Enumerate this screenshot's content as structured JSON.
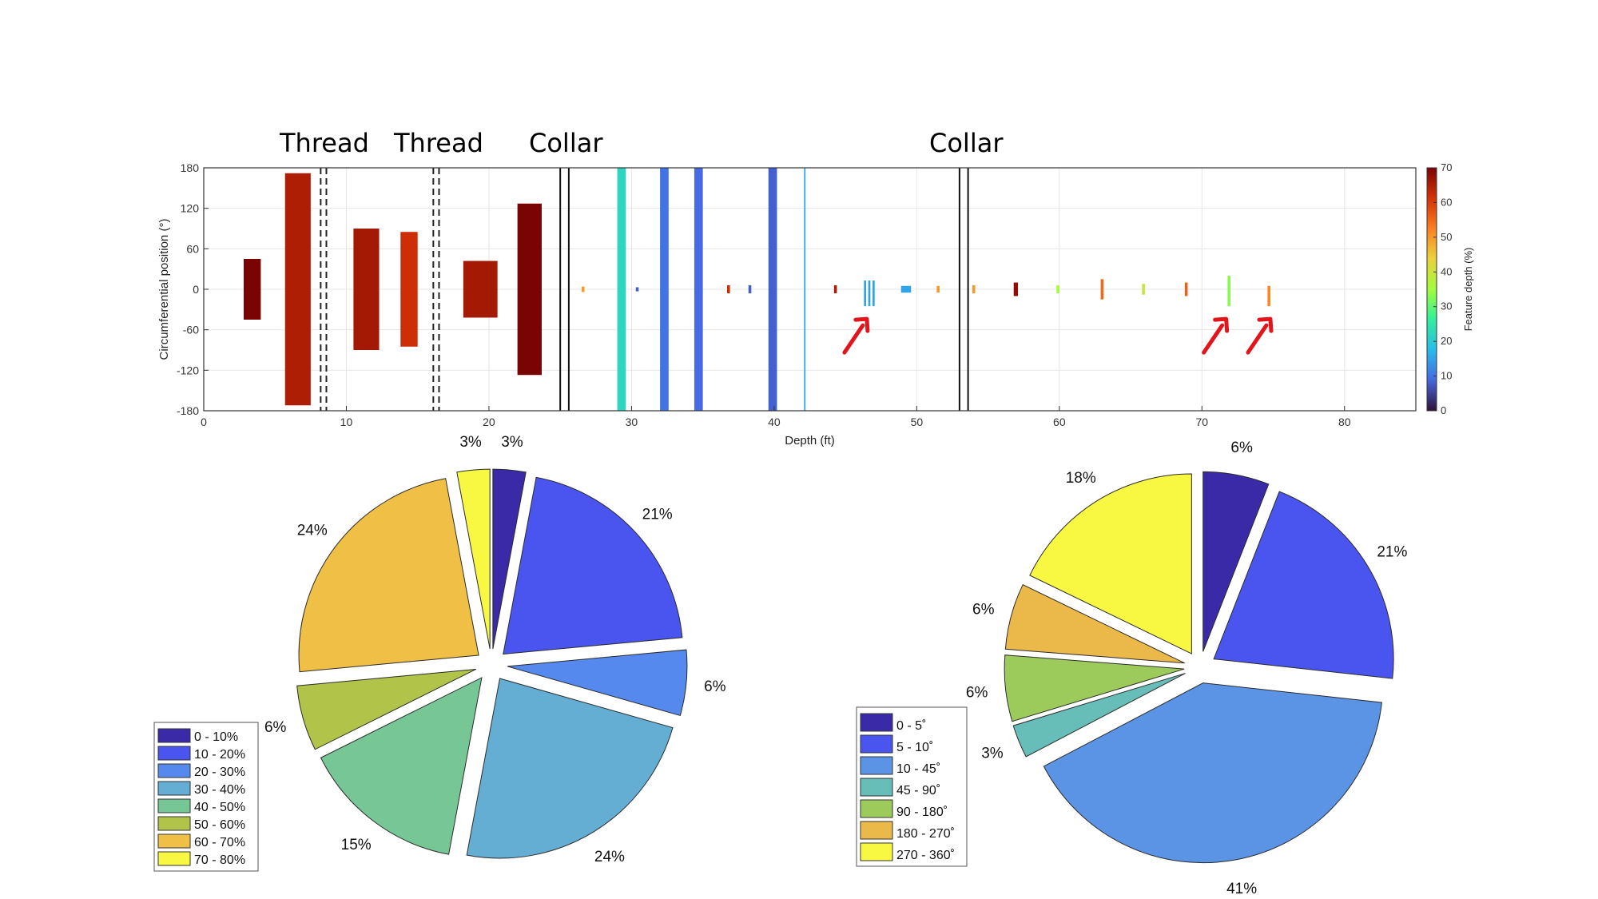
{
  "annotations": [
    "Thread",
    "Thread",
    "Collar",
    "Collar"
  ],
  "chart_data": [
    {
      "type": "bar",
      "xlabel": "Depth (ft)",
      "ylabel": "Circumferential position (°)",
      "colorbar_label": "Feature depth (%)",
      "xlim": [
        0,
        85
      ],
      "ylim": [
        -180,
        180
      ],
      "xticks": [
        0,
        10,
        20,
        30,
        40,
        50,
        60,
        70,
        80
      ],
      "yticks": [
        180,
        120,
        60,
        0,
        -60,
        -120,
        -180
      ],
      "colorbar_ticks": [
        70,
        60,
        50,
        40,
        30,
        20,
        10,
        0
      ],
      "colorbar_range": [
        0,
        70
      ],
      "grid": true,
      "dashed_markers": [
        8.2,
        8.6,
        16.1,
        16.5
      ],
      "solid_markers": [
        25.0,
        25.6,
        53.0,
        53.6
      ],
      "features": [
        {
          "x0": 2.8,
          "x1": 4.0,
          "y0": -45,
          "y1": 45,
          "depth": 70
        },
        {
          "x0": 5.7,
          "x1": 7.5,
          "y0": -172,
          "y1": 172,
          "depth": 65
        },
        {
          "x0": 10.5,
          "x1": 12.3,
          "y0": -90,
          "y1": 90,
          "depth": 66
        },
        {
          "x0": 13.8,
          "x1": 15.0,
          "y0": -85,
          "y1": 85,
          "depth": 62
        },
        {
          "x0": 18.2,
          "x1": 20.6,
          "y0": -42,
          "y1": 42,
          "depth": 66
        },
        {
          "x0": 22.0,
          "x1": 23.7,
          "y0": -127,
          "y1": 127,
          "depth": 70
        },
        {
          "x0": 26.5,
          "x1": 26.7,
          "y0": -4,
          "y1": 4,
          "depth": 50
        },
        {
          "x0": 29.0,
          "x1": 29.6,
          "y0": -180,
          "y1": 180,
          "depth": 22
        },
        {
          "x0": 30.3,
          "x1": 30.5,
          "y0": -3,
          "y1": 3,
          "depth": 8
        },
        {
          "x0": 32.0,
          "x1": 32.6,
          "y0": -180,
          "y1": 180,
          "depth": 10
        },
        {
          "x0": 34.4,
          "x1": 35.0,
          "y0": -180,
          "y1": 180,
          "depth": 9
        },
        {
          "x0": 36.7,
          "x1": 36.9,
          "y0": -6,
          "y1": 6,
          "depth": 62
        },
        {
          "x0": 38.2,
          "x1": 38.4,
          "y0": -6,
          "y1": 6,
          "depth": 8
        },
        {
          "x0": 39.6,
          "x1": 40.2,
          "y0": -180,
          "y1": 180,
          "depth": 8
        },
        {
          "x0": 42.1,
          "x1": 42.2,
          "y0": -180,
          "y1": 180,
          "depth": 15
        },
        {
          "x0": 44.2,
          "x1": 44.4,
          "y0": -6,
          "y1": 6,
          "depth": 65
        },
        {
          "x0": 46.3,
          "x1": 46.45,
          "y0": -25,
          "y1": 13,
          "depth": 15
        },
        {
          "x0": 46.6,
          "x1": 46.75,
          "y0": -25,
          "y1": 13,
          "depth": 15
        },
        {
          "x0": 46.9,
          "x1": 47.05,
          "y0": -25,
          "y1": 13,
          "depth": 15
        },
        {
          "x0": 48.9,
          "x1": 49.6,
          "y0": -5,
          "y1": 5,
          "depth": 15
        },
        {
          "x0": 51.4,
          "x1": 51.6,
          "y0": -5,
          "y1": 5,
          "depth": 50
        },
        {
          "x0": 53.9,
          "x1": 54.1,
          "y0": -6,
          "y1": 6,
          "depth": 50
        },
        {
          "x0": 56.8,
          "x1": 57.1,
          "y0": -10,
          "y1": 10,
          "depth": 68
        },
        {
          "x0": 59.8,
          "x1": 60.0,
          "y0": -6,
          "y1": 6,
          "depth": 35
        },
        {
          "x0": 62.9,
          "x1": 63.1,
          "y0": -15,
          "y1": 15,
          "depth": 55
        },
        {
          "x0": 65.8,
          "x1": 66.0,
          "y0": -8,
          "y1": 8,
          "depth": 40
        },
        {
          "x0": 68.8,
          "x1": 69.0,
          "y0": -10,
          "y1": 10,
          "depth": 56
        },
        {
          "x0": 71.8,
          "x1": 72.0,
          "y0": -25,
          "y1": 20,
          "depth": 33
        },
        {
          "x0": 74.6,
          "x1": 74.8,
          "y0": -25,
          "y1": 5,
          "depth": 52
        }
      ],
      "arrows": [
        {
          "x": 46.5,
          "y": -44
        },
        {
          "x": 71.7,
          "y": -44
        },
        {
          "x": 74.8,
          "y": -44
        }
      ]
    },
    {
      "type": "pie",
      "legend": [
        "0 - 10%",
        "10 - 20%",
        "20 - 30%",
        "30 - 40%",
        "40 - 50%",
        "50 - 60%",
        "60 - 70%",
        "70 - 80%"
      ],
      "values": [
        3,
        21,
        6,
        24,
        15,
        6,
        24,
        3
      ],
      "labels": [
        "3%",
        "21%",
        "6%",
        "24%",
        "15%",
        "6%",
        "24%",
        "3%"
      ],
      "colors": [
        "#3a2aa8",
        "#4a55ef",
        "#5589ed",
        "#64aed3",
        "#77c796",
        "#b1c348",
        "#efc045",
        "#f8f843"
      ],
      "legend_placement": "bottom-left"
    },
    {
      "type": "pie",
      "legend": [
        "0 - 5˚",
        "5 - 10˚",
        "10 - 45˚",
        "45 - 90˚",
        "90 - 180˚",
        "180 - 270˚",
        "270 - 360˚"
      ],
      "values": [
        6,
        21,
        41,
        3,
        6,
        6,
        18
      ],
      "labels": [
        "6%",
        "21%",
        "41%",
        "3%",
        "6%",
        "6%",
        "18%"
      ],
      "colors": [
        "#3a2aa8",
        "#4a55ef",
        "#5b93e5",
        "#67bdb8",
        "#9ccb5c",
        "#ebb84a",
        "#f8f843"
      ],
      "legend_placement": "bottom-left"
    }
  ]
}
